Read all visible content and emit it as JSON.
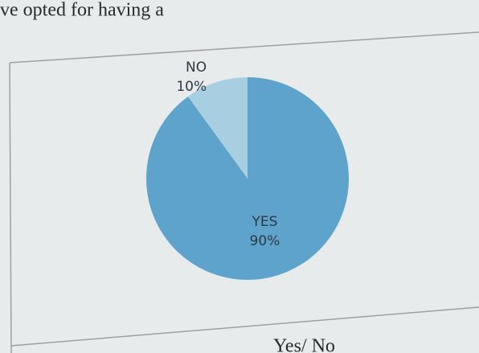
{
  "page_text": {
    "top": "ve opted for having a",
    "bottom": "Yes/ No"
  },
  "chart_data": {
    "type": "pie",
    "categories": [
      "YES",
      "NO"
    ],
    "values": [
      90,
      10
    ],
    "value_labels": [
      "90%",
      "10%"
    ],
    "colors": [
      "#5ea3cb",
      "#a8cfe1"
    ]
  }
}
